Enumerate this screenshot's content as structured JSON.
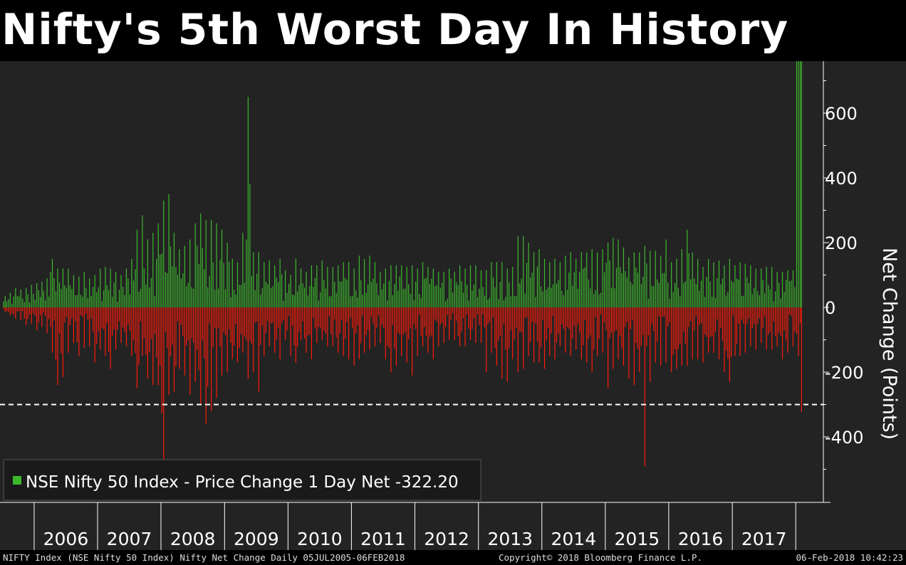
{
  "title": "Nifty's 5th Worst Day In History",
  "footer": {
    "left": "NIFTY Index (NSE Nifty 50 Index) Nifty Net Change  Daily 05JUL2005-06FEB2018",
    "center": "Copyright© 2018 Bloomberg Finance L.P.",
    "right": "06-Feb-2018 10:42:23"
  },
  "colors": {
    "background": "#232323",
    "positive": "#3cb92d",
    "negative": "#ff1a0a",
    "text": "#ffffff",
    "reference_line": "#ffffff"
  },
  "chart_data": {
    "type": "bar",
    "title": "Nifty's 5th Worst Day In History",
    "ylabel": "Net Change (Points)",
    "xlabel": "",
    "x_range": [
      "2005-07-05",
      "2018-02-06"
    ],
    "ylim": [
      -560,
      760
    ],
    "y_ticks": [
      600,
      400,
      200,
      0,
      -200,
      -400
    ],
    "y_tick_labels": [
      "600",
      "400",
      "200",
      "0",
      "-200",
      "-400"
    ],
    "x_tick_labels": [
      "2006",
      "2007",
      "2008",
      "2009",
      "2010",
      "2011",
      "2012",
      "2013",
      "2014",
      "2015",
      "2016",
      "2017"
    ],
    "grid": false,
    "legend": {
      "position": "bottom-left",
      "entries": [
        "NSE Nifty 50 Index - Price Change 1 Day Net -322.20"
      ]
    },
    "reference_line": {
      "y": -300,
      "style": "dashed"
    },
    "last_value": -322.2,
    "series": [
      {
        "name": "NSE Nifty 50 Index - Price Change 1 Day Net",
        "frequency": "monthly extremes (approx., read from chart)",
        "months": [
          "2005-07",
          "2005-08",
          "2005-09",
          "2005-10",
          "2005-11",
          "2005-12",
          "2006-01",
          "2006-02",
          "2006-03",
          "2006-04",
          "2006-05",
          "2006-06",
          "2006-07",
          "2006-08",
          "2006-09",
          "2006-10",
          "2006-11",
          "2006-12",
          "2007-01",
          "2007-02",
          "2007-03",
          "2007-04",
          "2007-05",
          "2007-06",
          "2007-07",
          "2007-08",
          "2007-09",
          "2007-10",
          "2007-11",
          "2007-12",
          "2008-01",
          "2008-02",
          "2008-03",
          "2008-04",
          "2008-05",
          "2008-06",
          "2008-07",
          "2008-08",
          "2008-09",
          "2008-10",
          "2008-11",
          "2008-12",
          "2009-01",
          "2009-02",
          "2009-03",
          "2009-04",
          "2009-05",
          "2009-06",
          "2009-07",
          "2009-08",
          "2009-09",
          "2009-10",
          "2009-11",
          "2009-12",
          "2010-01",
          "2010-02",
          "2010-03",
          "2010-04",
          "2010-05",
          "2010-06",
          "2010-07",
          "2010-08",
          "2010-09",
          "2010-10",
          "2010-11",
          "2010-12",
          "2011-01",
          "2011-02",
          "2011-03",
          "2011-04",
          "2011-05",
          "2011-06",
          "2011-07",
          "2011-08",
          "2011-09",
          "2011-10",
          "2011-11",
          "2011-12",
          "2012-01",
          "2012-02",
          "2012-03",
          "2012-04",
          "2012-05",
          "2012-06",
          "2012-07",
          "2012-08",
          "2012-09",
          "2012-10",
          "2012-11",
          "2012-12",
          "2013-01",
          "2013-02",
          "2013-03",
          "2013-04",
          "2013-05",
          "2013-06",
          "2013-07",
          "2013-08",
          "2013-09",
          "2013-10",
          "2013-11",
          "2013-12",
          "2014-01",
          "2014-02",
          "2014-03",
          "2014-04",
          "2014-05",
          "2014-06",
          "2014-07",
          "2014-08",
          "2014-09",
          "2014-10",
          "2014-11",
          "2014-12",
          "2015-01",
          "2015-02",
          "2015-03",
          "2015-04",
          "2015-05",
          "2015-06",
          "2015-07",
          "2015-08",
          "2015-09",
          "2015-10",
          "2015-11",
          "2015-12",
          "2016-01",
          "2016-02",
          "2016-03",
          "2016-04",
          "2016-05",
          "2016-06",
          "2016-07",
          "2016-08",
          "2016-09",
          "2016-10",
          "2016-11",
          "2016-12",
          "2017-01",
          "2017-02",
          "2017-03",
          "2017-04",
          "2017-05",
          "2017-06",
          "2017-07",
          "2017-08",
          "2017-09",
          "2017-10",
          "2017-11",
          "2017-12",
          "2018-01",
          "2018-02"
        ],
        "up": [
          35,
          45,
          60,
          55,
          60,
          70,
          75,
          80,
          90,
          150,
          120,
          120,
          120,
          100,
          95,
          110,
          90,
          100,
          120,
          125,
          120,
          110,
          100,
          120,
          150,
          240,
          285,
          210,
          230,
          260,
          330,
          350,
          230,
          180,
          190,
          210,
          260,
          290,
          270,
          270,
          260,
          240,
          200,
          150,
          140,
          230,
          650,
          170,
          170,
          140,
          145,
          130,
          150,
          115,
          100,
          150,
          120,
          110,
          130,
          130,
          145,
          125,
          125,
          130,
          140,
          140,
          120,
          160,
          150,
          160,
          140,
          110,
          120,
          130,
          130,
          130,
          125,
          130,
          120,
          140,
          125,
          120,
          110,
          110,
          120,
          110,
          130,
          120,
          130,
          130,
          115,
          115,
          140,
          140,
          140,
          120,
          125,
          220,
          220,
          200,
          170,
          180,
          150,
          140,
          150,
          140,
          160,
          170,
          150,
          170,
          170,
          180,
          170,
          180,
          200,
          215,
          210,
          185,
          155,
          170,
          170,
          190,
          175,
          175,
          160,
          210,
          140,
          150,
          180,
          240,
          170,
          150,
          125,
          150,
          140,
          145,
          130,
          150,
          130,
          140,
          135,
          130,
          120,
          120,
          125,
          125,
          110,
          110,
          115,
          115
        ],
        "down": [
          -15,
          -25,
          -35,
          -40,
          -55,
          -50,
          -70,
          -60,
          -80,
          -140,
          -240,
          -215,
          -140,
          -110,
          -150,
          -125,
          -120,
          -170,
          -130,
          -150,
          -190,
          -130,
          -110,
          -120,
          -150,
          -250,
          -150,
          -220,
          -240,
          -240,
          -490,
          -270,
          -260,
          -190,
          -210,
          -270,
          -230,
          -300,
          -360,
          -320,
          -280,
          -210,
          -200,
          -160,
          -170,
          -140,
          -220,
          -200,
          -260,
          -150,
          -120,
          -140,
          -160,
          -100,
          -150,
          -170,
          -100,
          -140,
          -160,
          -110,
          -100,
          -120,
          -120,
          -140,
          -150,
          -160,
          -180,
          -160,
          -140,
          -130,
          -120,
          -110,
          -160,
          -200,
          -180,
          -150,
          -170,
          -210,
          -150,
          -120,
          -140,
          -160,
          -120,
          -110,
          -100,
          -100,
          -120,
          -120,
          -100,
          -110,
          -110,
          -200,
          -140,
          -180,
          -220,
          -230,
          -160,
          -200,
          -190,
          -150,
          -170,
          -170,
          -190,
          -150,
          -160,
          -120,
          -140,
          -150,
          -130,
          -160,
          -170,
          -200,
          -150,
          -140,
          -250,
          -190,
          -160,
          -180,
          -220,
          -240,
          -200,
          -490,
          -230,
          -170,
          -180,
          -170,
          -200,
          -190,
          -180,
          -180,
          -160,
          -160,
          -170,
          -140,
          -140,
          -160,
          -200,
          -230,
          -150,
          -150,
          -140,
          -120,
          -130,
          -110,
          -130,
          -130,
          -120,
          -160,
          -140,
          -120,
          -150,
          -322.2
        ]
      }
    ]
  }
}
